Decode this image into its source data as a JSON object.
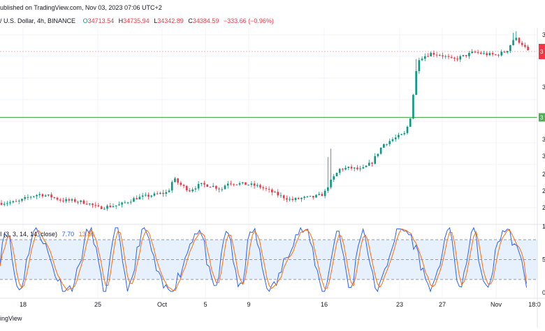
{
  "header": {
    "published_line": "ublished on TradingView.com, Nov 03, 2023 07:06 UTC+2",
    "symbol": "/ U.S. Dollar, 4h, BINANCE",
    "o_label": "O",
    "o_value": "34713.54",
    "h_label": "H",
    "h_value": "34735.94",
    "l_label": "L",
    "l_value": "34342.89",
    "c_label": "C",
    "c_value": "34384.59",
    "change": "−333.66 (−0.96%)"
  },
  "indicator": {
    "label": "I (3, 3, 14, 14, close)",
    "k_value": "7.70",
    "d_value": "13.86"
  },
  "footer": {
    "text": "ingView"
  },
  "colors": {
    "up": "#089981",
    "down": "#f23645",
    "k_line": "#2962ff",
    "d_line": "#ff6d00",
    "support": "#4caf50",
    "band": "#e3effd"
  },
  "chart_data": {
    "type": "candlestick",
    "x_tick_labels": [
      "18",
      "25",
      "Oct",
      "5",
      "9",
      "16",
      "23",
      "27",
      "Nov",
      "18:0"
    ],
    "price_axis_labels": [
      "3",
      "3",
      "3",
      "3",
      "3",
      "3",
      "2",
      "2",
      "2"
    ],
    "current_price_tag": "3",
    "support_tag": "3",
    "support_level": 31000,
    "current_price": 34384.59,
    "price_range": [
      25500,
      35600
    ],
    "price_path": [
      {
        "x": 0.0,
        "p": 26600
      },
      {
        "x": 0.03,
        "p": 26650
      },
      {
        "x": 0.05,
        "p": 26900
      },
      {
        "x": 0.07,
        "p": 27050
      },
      {
        "x": 0.09,
        "p": 26950
      },
      {
        "x": 0.11,
        "p": 26750
      },
      {
        "x": 0.14,
        "p": 26700
      },
      {
        "x": 0.16,
        "p": 26600
      },
      {
        "x": 0.18,
        "p": 26350
      },
      {
        "x": 0.22,
        "p": 26500
      },
      {
        "x": 0.25,
        "p": 26850
      },
      {
        "x": 0.28,
        "p": 27000
      },
      {
        "x": 0.31,
        "p": 27150
      },
      {
        "x": 0.32,
        "p": 27850
      },
      {
        "x": 0.335,
        "p": 27500
      },
      {
        "x": 0.35,
        "p": 27250
      },
      {
        "x": 0.37,
        "p": 27550
      },
      {
        "x": 0.39,
        "p": 27500
      },
      {
        "x": 0.41,
        "p": 27300
      },
      {
        "x": 0.42,
        "p": 27650
      },
      {
        "x": 0.44,
        "p": 27600
      },
      {
        "x": 0.46,
        "p": 27550
      },
      {
        "x": 0.48,
        "p": 27450
      },
      {
        "x": 0.5,
        "p": 27200
      },
      {
        "x": 0.52,
        "p": 26950
      },
      {
        "x": 0.54,
        "p": 26750
      },
      {
        "x": 0.56,
        "p": 26850
      },
      {
        "x": 0.58,
        "p": 26900
      },
      {
        "x": 0.6,
        "p": 27050
      },
      {
        "x": 0.61,
        "p": 27600
      },
      {
        "x": 0.63,
        "p": 28350
      },
      {
        "x": 0.65,
        "p": 28400
      },
      {
        "x": 0.67,
        "p": 28300
      },
      {
        "x": 0.69,
        "p": 28700
      },
      {
        "x": 0.71,
        "p": 29600
      },
      {
        "x": 0.73,
        "p": 29900
      },
      {
        "x": 0.75,
        "p": 30150
      },
      {
        "x": 0.76,
        "p": 30800
      },
      {
        "x": 0.775,
        "p": 34000
      },
      {
        "x": 0.8,
        "p": 34300
      },
      {
        "x": 0.82,
        "p": 34200
      },
      {
        "x": 0.84,
        "p": 33950
      },
      {
        "x": 0.86,
        "p": 34150
      },
      {
        "x": 0.88,
        "p": 34350
      },
      {
        "x": 0.9,
        "p": 34250
      },
      {
        "x": 0.92,
        "p": 34200
      },
      {
        "x": 0.94,
        "p": 34400
      },
      {
        "x": 0.955,
        "p": 35100
      },
      {
        "x": 0.97,
        "p": 34750
      },
      {
        "x": 0.98,
        "p": 34385
      }
    ],
    "stoch_rsi": {
      "k_last": 7.7,
      "d_last": 13.86,
      "upper_band": 80,
      "middle_line": 50,
      "lower_band": 20,
      "range": [
        0,
        100
      ]
    }
  }
}
